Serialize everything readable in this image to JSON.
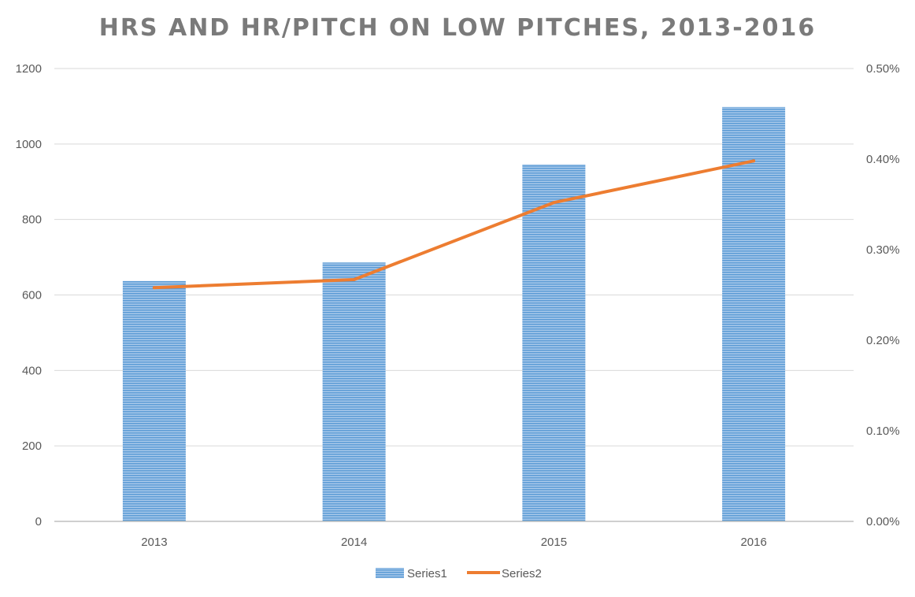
{
  "chart_data": {
    "type": "bar",
    "title": "HRS AND HR/PITCH ON LOW PITCHES, 2013-2016",
    "categories": [
      "2013",
      "2014",
      "2015",
      "2016"
    ],
    "series": [
      {
        "name": "Series1",
        "type": "bar",
        "axis": "left",
        "values": [
          637,
          686,
          946,
          1098
        ],
        "color": "#5b9bd5"
      },
      {
        "name": "Series2",
        "type": "line",
        "axis": "right",
        "values": [
          0.00258,
          0.00267,
          0.00352,
          0.00398
        ],
        "color": "#ed7d31"
      }
    ],
    "y_left": {
      "ylim": [
        0,
        1200
      ],
      "ticks": [
        "0",
        "200",
        "400",
        "600",
        "800",
        "1000",
        "1200"
      ]
    },
    "y_right": {
      "ylim": [
        0,
        0.005
      ],
      "ticks": [
        "0.00%",
        "0.10%",
        "0.20%",
        "0.30%",
        "0.40%",
        "0.50%"
      ]
    },
    "grid": true,
    "legend": {
      "position": "bottom",
      "entries": [
        "Series1",
        "Series2"
      ]
    }
  }
}
